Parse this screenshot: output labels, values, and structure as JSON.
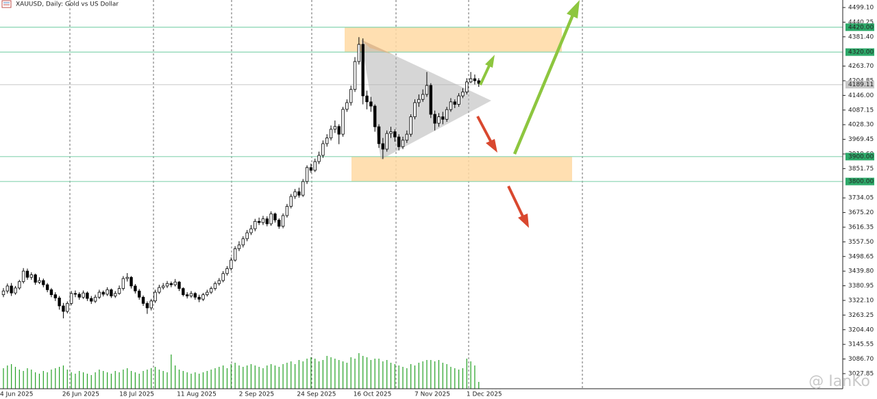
{
  "chart_data": {
    "type": "candlestick",
    "title": "XAUUSD, Daily: Gold vs US Dollar",
    "watermark": "@ IanKo",
    "categories": [
      "4 Jun 2025",
      null,
      null,
      null,
      null,
      null,
      null,
      null,
      null,
      null,
      null,
      null,
      null,
      null,
      null,
      null,
      null,
      null,
      "26 Jun 2025",
      null,
      null,
      null,
      null,
      null,
      null,
      null,
      null,
      null,
      null,
      null,
      null,
      null,
      "18 Jul 2025",
      null,
      null,
      null,
      null,
      null,
      null,
      null,
      null,
      null,
      null,
      null,
      null,
      null,
      null,
      "11 Aug 2025",
      null,
      null,
      null,
      null,
      null,
      null,
      null,
      null,
      null,
      null,
      null,
      null,
      null,
      null,
      "2 Sep 2025",
      null,
      null,
      null,
      null,
      null,
      null,
      null,
      null,
      null,
      null,
      null,
      null,
      null,
      null,
      "24 Sep 2025",
      null,
      null,
      null,
      null,
      null,
      null,
      null,
      null,
      null,
      null,
      null,
      null,
      null,
      "16 Oct 2025",
      null,
      null,
      null,
      null,
      null,
      null,
      null,
      null,
      null,
      null,
      null,
      null,
      null,
      null,
      "7 Nov 2025",
      null,
      null,
      null,
      null,
      null,
      null,
      null,
      null,
      null,
      null,
      null,
      null,
      "1 Dec 2025"
    ],
    "open": [
      3345,
      3360,
      3380,
      3352,
      3372,
      3398,
      3440,
      3415,
      3425,
      3395,
      3402,
      3385,
      3365,
      3345,
      3332,
      3300,
      3278,
      3310,
      3350,
      3347,
      3335,
      3352,
      3330,
      3319,
      3335,
      3355,
      3347,
      3365,
      3340,
      3350,
      3370,
      3410,
      3415,
      3380,
      3360,
      3335,
      3310,
      3292,
      3320,
      3355,
      3374,
      3380,
      3390,
      3385,
      3396,
      3370,
      3345,
      3340,
      3350,
      3335,
      3327,
      3345,
      3355,
      3370,
      3390,
      3402,
      3430,
      3450,
      3484,
      3530,
      3545,
      3570,
      3594,
      3610,
      3640,
      3635,
      3650,
      3630,
      3670,
      3645,
      3620,
      3663,
      3700,
      3740,
      3759,
      3745,
      3800,
      3856,
      3845,
      3880,
      3905,
      3952,
      3975,
      4010,
      4021,
      3990,
      4090,
      4117,
      4170,
      4282,
      4351,
      4144,
      4120,
      4103,
      4020,
      3952,
      3930,
      3993,
      4000,
      3979,
      3940,
      3966,
      3990,
      4060,
      4117,
      4130,
      4150,
      4186,
      4070,
      4034,
      4060,
      4050,
      4089,
      4120,
      4110,
      4144,
      4160,
      4200,
      4213,
      4205
    ],
    "high": [
      3372,
      3390,
      3392,
      3380,
      3405,
      3452,
      3450,
      3435,
      3430,
      3415,
      3410,
      3392,
      3372,
      3355,
      3340,
      3312,
      3318,
      3360,
      3362,
      3355,
      3362,
      3358,
      3340,
      3345,
      3365,
      3362,
      3375,
      3370,
      3360,
      3382,
      3420,
      3432,
      3420,
      3388,
      3368,
      3342,
      3318,
      3328,
      3365,
      3385,
      3392,
      3400,
      3398,
      3408,
      3400,
      3375,
      3355,
      3360,
      3356,
      3345,
      3352,
      3365,
      3378,
      3398,
      3412,
      3440,
      3460,
      3495,
      3540,
      3560,
      3580,
      3605,
      3625,
      3650,
      3655,
      3662,
      3660,
      3680,
      3675,
      3652,
      3672,
      3710,
      3750,
      3770,
      3775,
      3810,
      3865,
      3872,
      3892,
      3920,
      3965,
      3990,
      4025,
      4045,
      4030,
      4100,
      4130,
      4185,
      4300,
      4380,
      4375,
      4165,
      4140,
      4110,
      4030,
      3975,
      4005,
      4020,
      4010,
      3990,
      3980,
      4005,
      4070,
      4130,
      4150,
      4170,
      4240,
      4195,
      4085,
      4075,
      4080,
      4100,
      4135,
      4130,
      4155,
      4175,
      4215,
      4240,
      4230,
      4215
    ],
    "low": [
      3335,
      3350,
      3340,
      3345,
      3365,
      3390,
      3405,
      3405,
      3385,
      3388,
      3375,
      3355,
      3335,
      3320,
      3285,
      3250,
      3270,
      3302,
      3335,
      3325,
      3328,
      3320,
      3308,
      3312,
      3328,
      3338,
      3340,
      3332,
      3332,
      3345,
      3362,
      3398,
      3370,
      3350,
      3325,
      3300,
      3268,
      3282,
      3312,
      3348,
      3366,
      3372,
      3375,
      3378,
      3360,
      3338,
      3330,
      3332,
      3325,
      3315,
      3320,
      3338,
      3348,
      3362,
      3382,
      3395,
      3422,
      3442,
      3478,
      3520,
      3535,
      3560,
      3585,
      3600,
      3625,
      3625,
      3620,
      3622,
      3635,
      3610,
      3612,
      3655,
      3692,
      3730,
      3735,
      3738,
      3790,
      3835,
      3838,
      3870,
      3895,
      3940,
      3965,
      3995,
      3950,
      3980,
      4080,
      4105,
      4160,
      4270,
      4110,
      4090,
      4080,
      4000,
      3935,
      3890,
      3920,
      3975,
      3960,
      3925,
      3930,
      3955,
      3980,
      4050,
      4100,
      4120,
      4140,
      4055,
      4005,
      4020,
      4030,
      4040,
      4080,
      4095,
      4100,
      4135,
      4150,
      4195,
      4190,
      4180
    ],
    "close": [
      3360,
      3380,
      3352,
      3372,
      3398,
      3440,
      3415,
      3425,
      3395,
      3402,
      3385,
      3365,
      3345,
      3332,
      3300,
      3278,
      3310,
      3350,
      3347,
      3335,
      3352,
      3330,
      3319,
      3335,
      3355,
      3347,
      3365,
      3340,
      3350,
      3370,
      3410,
      3415,
      3380,
      3360,
      3335,
      3310,
      3292,
      3320,
      3355,
      3374,
      3380,
      3390,
      3385,
      3396,
      3370,
      3345,
      3340,
      3350,
      3335,
      3327,
      3345,
      3355,
      3370,
      3390,
      3402,
      3430,
      3450,
      3484,
      3530,
      3545,
      3570,
      3594,
      3610,
      3640,
      3635,
      3650,
      3630,
      3670,
      3645,
      3620,
      3663,
      3700,
      3740,
      3759,
      3745,
      3800,
      3856,
      3845,
      3880,
      3905,
      3952,
      3975,
      4010,
      4021,
      3990,
      4090,
      4117,
      4170,
      4282,
      4351,
      4144,
      4120,
      4103,
      4020,
      3952,
      3930,
      3993,
      4000,
      3979,
      3940,
      3966,
      3990,
      4060,
      4117,
      4130,
      4150,
      4186,
      4070,
      4034,
      4060,
      4050,
      4089,
      4120,
      4110,
      4144,
      4160,
      4200,
      4213,
      4205,
      4194
    ],
    "volume": [
      30,
      34,
      36,
      32,
      28,
      26,
      30,
      28,
      24,
      22,
      26,
      24,
      28,
      30,
      32,
      34,
      28,
      24,
      22,
      26,
      24,
      22,
      20,
      24,
      28,
      26,
      24,
      22,
      26,
      24,
      28,
      30,
      26,
      24,
      22,
      26,
      28,
      30,
      32,
      28,
      26,
      24,
      50,
      34,
      28,
      26,
      24,
      22,
      24,
      22,
      24,
      26,
      28,
      30,
      32,
      34,
      30,
      36,
      38,
      34,
      32,
      34,
      36,
      34,
      32,
      30,
      34,
      36,
      34,
      32,
      36,
      38,
      40,
      36,
      42,
      40,
      44,
      46,
      44,
      40,
      42,
      48,
      46,
      44,
      42,
      40,
      38,
      46,
      44,
      52,
      48,
      46,
      42,
      44,
      44,
      40,
      42,
      38,
      36,
      34,
      32,
      30,
      36,
      34,
      38,
      40,
      42,
      42,
      40,
      42,
      38,
      36,
      32,
      30,
      28,
      30,
      44,
      40,
      34,
      10
    ],
    "volume_color": "#22a022",
    "up_color": "#ffffff",
    "down_color": "#000000",
    "ylim": [
      2967.2,
      4529.35
    ],
    "yticks": [
      {
        "value": 4499.1,
        "label": "4499.10"
      },
      {
        "value": 4440.25,
        "label": "4440.25"
      },
      {
        "value": 4381.4,
        "label": "4381.40"
      },
      {
        "value": 4263.7,
        "label": "4263.70"
      },
      {
        "value": 4204.85,
        "label": "4204.85"
      },
      {
        "value": 4146,
        "label": "4146.00"
      },
      {
        "value": 4087.15,
        "label": "4087.15"
      },
      {
        "value": 4028.3,
        "label": "4028.30"
      },
      {
        "value": 3969.45,
        "label": "3969.45"
      },
      {
        "value": 3910.6,
        "label": "3910.60"
      },
      {
        "value": 3851.75,
        "label": "3851.75"
      },
      {
        "value": 3734.05,
        "label": "3734.05"
      },
      {
        "value": 3675.2,
        "label": "3675.20"
      },
      {
        "value": 3616.35,
        "label": "3616.35"
      },
      {
        "value": 3557.5,
        "label": "3557.50"
      },
      {
        "value": 3498.65,
        "label": "3498.65"
      },
      {
        "value": 3439.8,
        "label": "3439.80"
      },
      {
        "value": 3380.95,
        "label": "3380.95"
      },
      {
        "value": 3322.1,
        "label": "3322.10"
      },
      {
        "value": 3263.25,
        "label": "3263.25"
      },
      {
        "value": 3204.4,
        "label": "3204.40"
      },
      {
        "value": 3145.55,
        "label": "3145.55"
      },
      {
        "value": 3086.7,
        "label": "3086.70"
      },
      {
        "value": 3027.85,
        "label": "3027.85"
      }
    ],
    "levels": [
      {
        "value": 4420,
        "label": "4420.00"
      },
      {
        "value": 4320,
        "label": "4320.00"
      },
      {
        "value": 3900,
        "label": "3900.00"
      },
      {
        "value": 3800,
        "label": "3800.00"
      }
    ],
    "level_color": "#86d4b0",
    "current_price": {
      "value": 4189.11,
      "label": "4189.11"
    },
    "zones": [
      {
        "from": 4320,
        "to": 4420
      },
      {
        "from": 3800,
        "to": 3900
      }
    ],
    "zone_color": "#ffd9a3"
  }
}
